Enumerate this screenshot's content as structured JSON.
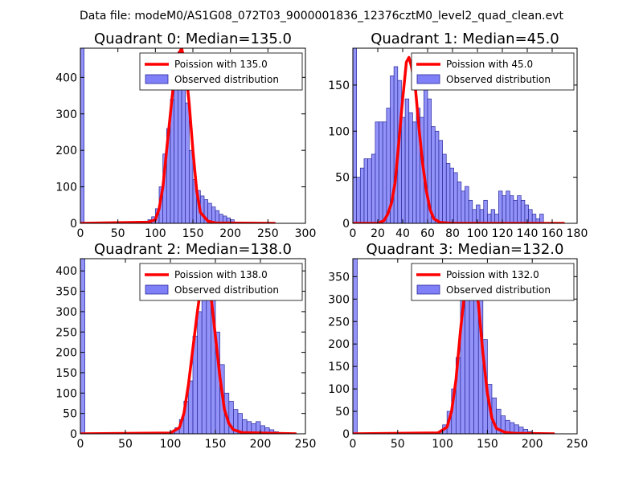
{
  "figure": {
    "title": "Data file: modeM0/AS1G08_072T03_9000001836_12376cztM0_level2_quad_clean.evt"
  },
  "colors": {
    "bar_fill": "#7f7ff8",
    "bar_edge": "#2a2a9a",
    "curve": "#ff0000"
  },
  "chart_data": [
    {
      "type": "bar",
      "title": "Quadrant 0: Median=135.0",
      "median": 135.0,
      "xlim": [
        0,
        300
      ],
      "ylim": [
        0,
        480
      ],
      "xticks": [
        0,
        50,
        100,
        150,
        200,
        250,
        300
      ],
      "yticks": [
        0,
        100,
        200,
        300,
        400
      ],
      "bin_width": 5,
      "legend": {
        "curve_label": "Poission with 135.0",
        "hist_label": "Observed distribution",
        "placement": "top-right"
      },
      "hist": [
        {
          "x": 0,
          "y": 480
        },
        {
          "x": 75,
          "y": 2
        },
        {
          "x": 80,
          "y": 4
        },
        {
          "x": 85,
          "y": 6
        },
        {
          "x": 90,
          "y": 10
        },
        {
          "x": 95,
          "y": 18
        },
        {
          "x": 100,
          "y": 40
        },
        {
          "x": 105,
          "y": 100
        },
        {
          "x": 110,
          "y": 190
        },
        {
          "x": 115,
          "y": 260
        },
        {
          "x": 120,
          "y": 340
        },
        {
          "x": 125,
          "y": 430
        },
        {
          "x": 130,
          "y": 470
        },
        {
          "x": 135,
          "y": 440
        },
        {
          "x": 140,
          "y": 330
        },
        {
          "x": 145,
          "y": 200
        },
        {
          "x": 150,
          "y": 120
        },
        {
          "x": 155,
          "y": 90
        },
        {
          "x": 160,
          "y": 75
        },
        {
          "x": 165,
          "y": 65
        },
        {
          "x": 170,
          "y": 55
        },
        {
          "x": 175,
          "y": 45
        },
        {
          "x": 180,
          "y": 35
        },
        {
          "x": 185,
          "y": 25
        },
        {
          "x": 190,
          "y": 20
        },
        {
          "x": 195,
          "y": 15
        },
        {
          "x": 200,
          "y": 10
        }
      ],
      "curve": {
        "x": [
          0,
          90,
          100,
          105,
          110,
          115,
          120,
          125,
          130,
          135,
          140,
          145,
          150,
          155,
          160,
          170,
          180,
          260
        ],
        "y": [
          0,
          3,
          10,
          40,
          100,
          200,
          300,
          400,
          460,
          480,
          430,
          330,
          200,
          90,
          30,
          6,
          1,
          0
        ]
      }
    },
    {
      "type": "bar",
      "title": "Quadrant 1: Median=45.0",
      "median": 45.0,
      "xlim": [
        0,
        180
      ],
      "ylim": [
        0,
        190
      ],
      "xticks": [
        0,
        20,
        40,
        60,
        80,
        100,
        120,
        140,
        160,
        180
      ],
      "xtick_labels": [
        "0",
        "20",
        "40",
        "60",
        "80",
        "100",
        "120",
        "140",
        "160",
        "180"
      ],
      "yticks": [
        0,
        50,
        100,
        150
      ],
      "bin_width": 3,
      "legend": {
        "curve_label": "Poission with 45.0",
        "hist_label": "Observed distribution",
        "placement": "top-right"
      },
      "hist": [
        {
          "x": 0,
          "y": 190
        },
        {
          "x": 3,
          "y": 50
        },
        {
          "x": 6,
          "y": 60
        },
        {
          "x": 9,
          "y": 70
        },
        {
          "x": 12,
          "y": 70
        },
        {
          "x": 15,
          "y": 75
        },
        {
          "x": 18,
          "y": 110
        },
        {
          "x": 21,
          "y": 110
        },
        {
          "x": 24,
          "y": 110
        },
        {
          "x": 27,
          "y": 125
        },
        {
          "x": 30,
          "y": 160
        },
        {
          "x": 33,
          "y": 170
        },
        {
          "x": 36,
          "y": 155
        },
        {
          "x": 39,
          "y": 115
        },
        {
          "x": 42,
          "y": 135
        },
        {
          "x": 45,
          "y": 120
        },
        {
          "x": 48,
          "y": 110
        },
        {
          "x": 51,
          "y": 125
        },
        {
          "x": 54,
          "y": 115
        },
        {
          "x": 57,
          "y": 145
        },
        {
          "x": 60,
          "y": 135
        },
        {
          "x": 63,
          "y": 105
        },
        {
          "x": 66,
          "y": 100
        },
        {
          "x": 69,
          "y": 90
        },
        {
          "x": 72,
          "y": 75
        },
        {
          "x": 75,
          "y": 65
        },
        {
          "x": 78,
          "y": 60
        },
        {
          "x": 81,
          "y": 55
        },
        {
          "x": 84,
          "y": 45
        },
        {
          "x": 87,
          "y": 35
        },
        {
          "x": 90,
          "y": 40
        },
        {
          "x": 93,
          "y": 25
        },
        {
          "x": 96,
          "y": 15
        },
        {
          "x": 99,
          "y": 20
        },
        {
          "x": 102,
          "y": 15
        },
        {
          "x": 105,
          "y": 25
        },
        {
          "x": 108,
          "y": 10
        },
        {
          "x": 111,
          "y": 15
        },
        {
          "x": 114,
          "y": 10
        },
        {
          "x": 117,
          "y": 35
        },
        {
          "x": 120,
          "y": 30
        },
        {
          "x": 123,
          "y": 35
        },
        {
          "x": 126,
          "y": 30
        },
        {
          "x": 129,
          "y": 25
        },
        {
          "x": 132,
          "y": 30
        },
        {
          "x": 135,
          "y": 25
        },
        {
          "x": 138,
          "y": 20
        },
        {
          "x": 141,
          "y": 15
        },
        {
          "x": 144,
          "y": 10
        },
        {
          "x": 147,
          "y": 5
        },
        {
          "x": 150,
          "y": 10
        }
      ],
      "curve": {
        "x": [
          0,
          20,
          25,
          28,
          31,
          34,
          37,
          40,
          43,
          45,
          47,
          50,
          53,
          56,
          59,
          62,
          65,
          70,
          80,
          170
        ],
        "y": [
          0,
          0,
          3,
          10,
          22,
          45,
          90,
          135,
          175,
          180,
          170,
          150,
          105,
          65,
          35,
          15,
          5,
          1,
          0,
          0
        ]
      }
    },
    {
      "type": "bar",
      "title": "Quadrant 2: Median=138.0",
      "median": 138.0,
      "xlim": [
        0,
        250
      ],
      "ylim": [
        0,
        430
      ],
      "xticks": [
        0,
        50,
        100,
        150,
        200,
        250
      ],
      "yticks": [
        0,
        50,
        100,
        150,
        200,
        250,
        300,
        350,
        400
      ],
      "bin_width": 5,
      "legend": {
        "curve_label": "Poission with 138.0",
        "hist_label": "Observed distribution",
        "placement": "top-right"
      },
      "hist": [
        {
          "x": 0,
          "y": 430
        },
        {
          "x": 75,
          "y": 2
        },
        {
          "x": 90,
          "y": 3
        },
        {
          "x": 100,
          "y": 5
        },
        {
          "x": 105,
          "y": 15
        },
        {
          "x": 110,
          "y": 35
        },
        {
          "x": 115,
          "y": 80
        },
        {
          "x": 120,
          "y": 130
        },
        {
          "x": 125,
          "y": 240
        },
        {
          "x": 130,
          "y": 300
        },
        {
          "x": 135,
          "y": 360
        },
        {
          "x": 140,
          "y": 390
        },
        {
          "x": 145,
          "y": 330
        },
        {
          "x": 150,
          "y": 250
        },
        {
          "x": 155,
          "y": 170
        },
        {
          "x": 160,
          "y": 100
        },
        {
          "x": 165,
          "y": 80
        },
        {
          "x": 170,
          "y": 60
        },
        {
          "x": 175,
          "y": 50
        },
        {
          "x": 180,
          "y": 35
        },
        {
          "x": 185,
          "y": 30
        },
        {
          "x": 190,
          "y": 25
        },
        {
          "x": 195,
          "y": 30
        },
        {
          "x": 200,
          "y": 20
        },
        {
          "x": 205,
          "y": 15
        },
        {
          "x": 210,
          "y": 10
        },
        {
          "x": 215,
          "y": 5
        }
      ],
      "curve": {
        "x": [
          0,
          100,
          110,
          115,
          120,
          125,
          130,
          135,
          138,
          140,
          145,
          150,
          155,
          160,
          165,
          170,
          180,
          240
        ],
        "y": [
          0,
          2,
          15,
          50,
          120,
          210,
          300,
          380,
          405,
          400,
          340,
          240,
          140,
          60,
          25,
          10,
          3,
          0
        ]
      }
    },
    {
      "type": "bar",
      "title": "Quadrant 3: Median=132.0",
      "median": 132.0,
      "xlim": [
        0,
        250
      ],
      "ylim": [
        0,
        390
      ],
      "xticks": [
        0,
        50,
        100,
        150,
        200,
        250
      ],
      "yticks": [
        0,
        50,
        100,
        150,
        200,
        250,
        300,
        350
      ],
      "bin_width": 5,
      "legend": {
        "curve_label": "Poission with 132.0",
        "hist_label": "Observed distribution",
        "placement": "top-right"
      },
      "hist": [
        {
          "x": 0,
          "y": 390
        },
        {
          "x": 70,
          "y": 2
        },
        {
          "x": 90,
          "y": 3
        },
        {
          "x": 95,
          "y": 5
        },
        {
          "x": 100,
          "y": 20
        },
        {
          "x": 105,
          "y": 50
        },
        {
          "x": 110,
          "y": 100
        },
        {
          "x": 115,
          "y": 170
        },
        {
          "x": 120,
          "y": 300
        },
        {
          "x": 125,
          "y": 340
        },
        {
          "x": 130,
          "y": 330
        },
        {
          "x": 135,
          "y": 310
        },
        {
          "x": 140,
          "y": 300
        },
        {
          "x": 145,
          "y": 210
        },
        {
          "x": 150,
          "y": 110
        },
        {
          "x": 155,
          "y": 80
        },
        {
          "x": 160,
          "y": 55
        },
        {
          "x": 165,
          "y": 40
        },
        {
          "x": 170,
          "y": 30
        },
        {
          "x": 175,
          "y": 25
        },
        {
          "x": 180,
          "y": 20
        },
        {
          "x": 185,
          "y": 15
        },
        {
          "x": 190,
          "y": 10
        },
        {
          "x": 195,
          "y": 5
        }
      ],
      "curve": {
        "x": [
          0,
          95,
          105,
          110,
          115,
          120,
          125,
          130,
          132,
          135,
          140,
          145,
          150,
          155,
          160,
          170,
          180,
          225
        ],
        "y": [
          0,
          2,
          15,
          50,
          120,
          230,
          320,
          365,
          370,
          360,
          290,
          180,
          90,
          35,
          12,
          3,
          1,
          0
        ]
      }
    }
  ]
}
